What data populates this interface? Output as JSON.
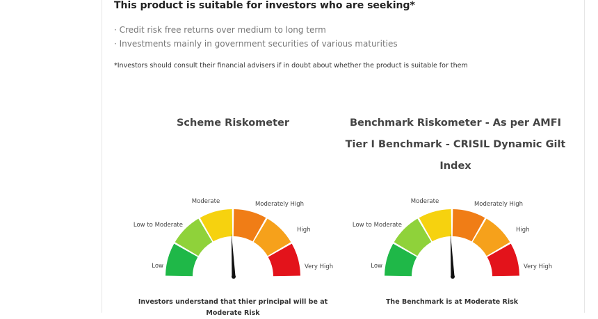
{
  "suitability": {
    "heading": "This product is suitable for investors who are seeking*",
    "bullets": [
      "· Credit risk free returns over medium to long term",
      "· Investments mainly in government securities of various maturities"
    ],
    "note": "*Investors should consult their financial advisers if in doubt about whether the product is suitable for them"
  },
  "scheme_meter": {
    "title": "Scheme Riskometer",
    "caption": "Investors understand that thier principal will be at Moderate Risk",
    "level": "Moderate"
  },
  "benchmark_meter": {
    "title": "Benchmark Riskometer - As per AMFI Tier I Benchmark - CRISIL Dynamic Gilt Index",
    "caption": "The Benchmark is at Moderate Risk",
    "level": "Moderate"
  },
  "risk_levels": [
    "Low",
    "Low to Moderate",
    "Moderate",
    "Moderately High",
    "High",
    "Very High"
  ],
  "segment_colors": [
    "#1fb848",
    "#8fd23a",
    "#f6d20f",
    "#f07d16",
    "#f6a11b",
    "#e3131b"
  ]
}
